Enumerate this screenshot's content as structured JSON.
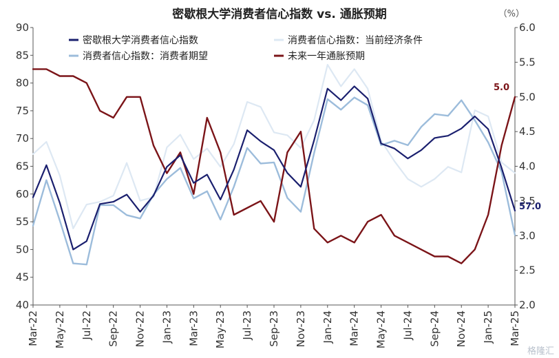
{
  "chart_data": {
    "type": "line",
    "title": "密歇根大学消费者信心指数 vs. 通胀预期",
    "right_unit": "（%）",
    "x": [
      "Mar-22",
      "Apr-22",
      "May-22",
      "Jun-22",
      "Jul-22",
      "Aug-22",
      "Sep-22",
      "Oct-22",
      "Nov-22",
      "Dec-22",
      "Jan-23",
      "Feb-23",
      "Mar-23",
      "Apr-23",
      "May-23",
      "Jun-23",
      "Jul-23",
      "Aug-23",
      "Sep-23",
      "Oct-23",
      "Nov-23",
      "Dec-23",
      "Jan-24",
      "Feb-24",
      "Mar-24",
      "Apr-24",
      "May-24",
      "Jun-24",
      "Jul-24",
      "Aug-24",
      "Sep-24",
      "Oct-24",
      "Nov-24",
      "Dec-24",
      "Jan-25",
      "Feb-25",
      "Mar-25"
    ],
    "x_tick_labels": [
      "Mar-22",
      "May-22",
      "Jul-22",
      "Sep-22",
      "Nov-22",
      "Jan-23",
      "Mar-23",
      "May-23",
      "Jul-23",
      "Sep-23",
      "Nov-23",
      "Jan-24",
      "Mar-24",
      "May-24",
      "Jul-24",
      "Sep-24",
      "Nov-24",
      "Jan-25",
      "Mar-25"
    ],
    "y_left": {
      "min": 40,
      "max": 90,
      "ticks": [
        40,
        45,
        50,
        55,
        60,
        65,
        70,
        75,
        80,
        85,
        90
      ]
    },
    "y_right": {
      "min": 2.0,
      "max": 6.0,
      "ticks": [
        "2.0",
        "2.5",
        "3.0",
        "3.5",
        "4.0",
        "4.5",
        "5.0",
        "5.5",
        "6.0"
      ]
    },
    "grid": false,
    "legend_position": "top",
    "series": [
      {
        "name": "密歇根大学消费者信心指数",
        "axis": "left",
        "color": "#1a1f6e",
        "width": 2.2,
        "values": [
          59.4,
          65.2,
          58.4,
          50.0,
          51.5,
          58.2,
          58.6,
          59.9,
          56.8,
          59.7,
          64.9,
          67.0,
          62.0,
          63.5,
          59.0,
          64.4,
          71.5,
          69.5,
          67.9,
          63.8,
          61.3,
          69.7,
          79.0,
          76.9,
          79.4,
          77.2,
          69.1,
          68.2,
          66.4,
          67.9,
          70.1,
          70.5,
          71.8,
          74.0,
          71.7,
          64.7,
          57.0
        ]
      },
      {
        "name": "消费者信心指数：当前经济条件",
        "axis": "left",
        "color": "#dde8f3",
        "width": 2.2,
        "values": [
          67.2,
          69.4,
          63.3,
          53.8,
          58.1,
          58.6,
          59.7,
          65.6,
          58.8,
          59.4,
          68.4,
          70.7,
          66.3,
          68.2,
          64.9,
          69.0,
          76.6,
          75.7,
          71.1,
          70.6,
          68.3,
          73.3,
          83.3,
          79.4,
          82.5,
          79.0,
          69.6,
          65.9,
          62.7,
          61.3,
          62.7,
          64.9,
          63.9,
          75.1,
          74.0,
          65.7,
          63.8
        ]
      },
      {
        "name": "消费者信心指数：消费者期望",
        "axis": "left",
        "color": "#9cbcdb",
        "width": 2.4,
        "values": [
          54.3,
          62.5,
          55.2,
          47.5,
          47.3,
          58.0,
          58.0,
          56.2,
          55.6,
          59.9,
          62.7,
          64.7,
          59.2,
          60.5,
          55.4,
          61.3,
          68.3,
          65.5,
          65.7,
          59.3,
          56.8,
          67.4,
          77.1,
          75.2,
          77.4,
          76.0,
          68.8,
          69.6,
          68.8,
          72.1,
          74.4,
          74.1,
          76.9,
          73.3,
          69.3,
          64.0,
          52.6
        ]
      },
      {
        "name": "未来一年通胀预期",
        "axis": "right",
        "color": "#7b1418",
        "width": 2.4,
        "values": [
          5.4,
          5.4,
          5.3,
          5.3,
          5.2,
          4.8,
          4.7,
          5.0,
          5.0,
          4.3,
          3.9,
          4.2,
          3.6,
          4.7,
          4.2,
          3.3,
          3.4,
          3.5,
          3.2,
          4.2,
          4.5,
          3.1,
          2.9,
          3.0,
          2.9,
          3.2,
          3.3,
          3.0,
          2.9,
          2.8,
          2.7,
          2.7,
          2.6,
          2.8,
          3.3,
          4.3,
          5.0
        ]
      }
    ],
    "annotations": [
      {
        "text": "5.0",
        "series": 3,
        "color": "#7b1418"
      },
      {
        "text": "57.0",
        "series": 0,
        "color": "#1a1f6e"
      }
    ]
  },
  "watermark": "格隆汇"
}
